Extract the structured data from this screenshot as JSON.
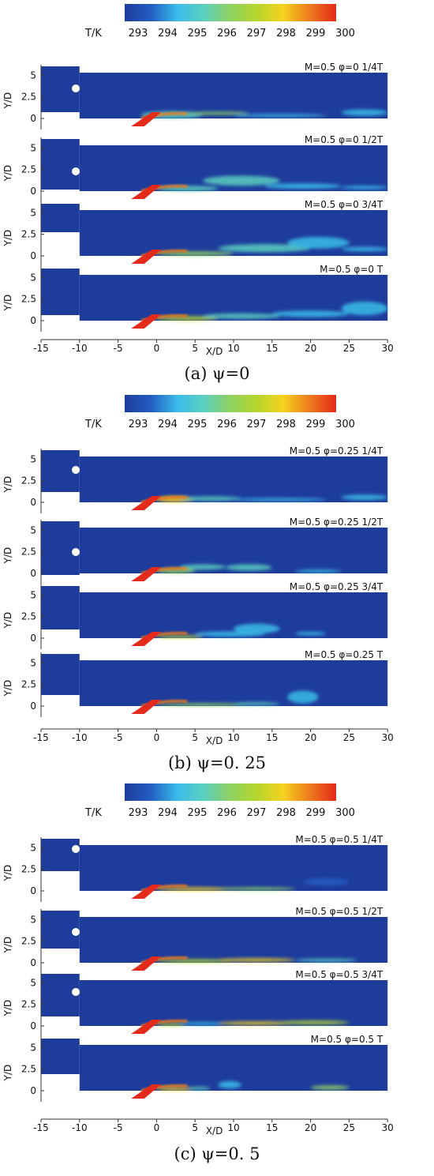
{
  "colorbar": {
    "label": "T/K",
    "ticks": [
      "293",
      "294",
      "295",
      "296",
      "297",
      "298",
      "299",
      "300"
    ],
    "range": [
      293,
      300
    ],
    "colors": [
      "#1e3c9c",
      "#245ec4",
      "#3bbce8",
      "#5bcfc0",
      "#8fd160",
      "#b5d62e",
      "#f5d21e",
      "#ee7a1e",
      "#e42a1a"
    ]
  },
  "axes": {
    "ylabel": "Y/D",
    "xlabel": "X/D",
    "yticks": [
      "5",
      "2.5",
      "0"
    ],
    "xticks": [
      "-15",
      "-10",
      "-5",
      "0",
      "5",
      "10",
      "15",
      "20",
      "25",
      "30"
    ]
  },
  "groups": [
    {
      "caption": "(a) ψ=0",
      "panels": [
        {
          "label": "M=0.5  φ=0  1/4T"
        },
        {
          "label": "M=0.5  φ=0  1/2T"
        },
        {
          "label": "M=0.5  φ=0  3/4T"
        },
        {
          "label": "M=0.5  φ=0    T"
        }
      ]
    },
    {
      "caption": "(b) ψ=0. 25",
      "panels": [
        {
          "label": "M=0.5  φ=0.25  1/4T"
        },
        {
          "label": "M=0.5  φ=0.25  1/2T"
        },
        {
          "label": "M=0.5  φ=0.25  3/4T"
        },
        {
          "label": "M=0.5  φ=0.25    T"
        }
      ]
    },
    {
      "caption": "(c) ψ=0. 5",
      "panels": [
        {
          "label": "M=0.5  φ=0.5  1/4T"
        },
        {
          "label": "M=0.5  φ=0.5  1/2T"
        },
        {
          "label": "M=0.5  φ=0.5  3/4T"
        },
        {
          "label": "M=0.5  φ=0.5    T"
        }
      ]
    }
  ]
}
